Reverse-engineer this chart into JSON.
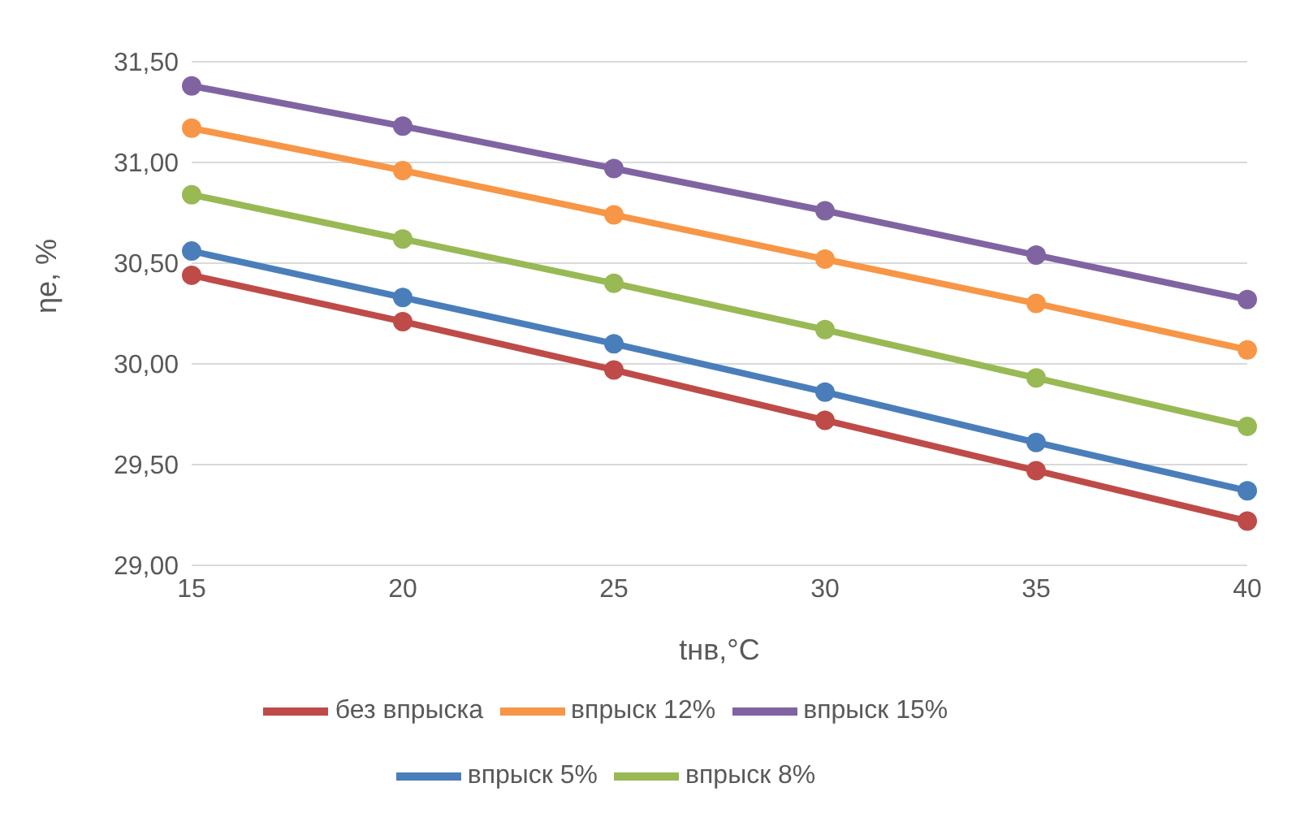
{
  "chart_data": {
    "type": "line",
    "xlabel": "tнв,°C",
    "ylabel": "ηе, %",
    "categories": [
      "15",
      "20",
      "25",
      "30",
      "35",
      "40"
    ],
    "ylim": [
      29,
      31.5
    ],
    "yticks": [
      {
        "value": 29,
        "label": "29,00"
      },
      {
        "value": 29.5,
        "label": "29,50"
      },
      {
        "value": 30,
        "label": "30,00"
      },
      {
        "value": 30.5,
        "label": "30,50"
      },
      {
        "value": 31,
        "label": "31,00"
      },
      {
        "value": 31.5,
        "label": "31,50"
      }
    ],
    "grid": "y",
    "legend": "bottom",
    "marker": "circle",
    "line_style": "solid",
    "series": [
      {
        "name": "впрыск 5%",
        "color": "#4a7ebb",
        "values": [
          30.56,
          30.33,
          30.1,
          29.86,
          29.61,
          29.37
        ]
      },
      {
        "name": "впрыск 8%",
        "color": "#98b954",
        "values": [
          30.84,
          30.62,
          30.4,
          30.17,
          29.93,
          29.69
        ]
      },
      {
        "name": "впрыск 12%",
        "color": "#f79646",
        "values": [
          31.17,
          30.96,
          30.74,
          30.52,
          30.3,
          30.07
        ]
      },
      {
        "name": "впрыск 15%",
        "color": "#8064a2",
        "values": [
          31.38,
          31.18,
          30.97,
          30.76,
          30.54,
          30.32
        ]
      },
      {
        "name": "без впрыска",
        "color": "#be4b48",
        "values": [
          30.44,
          30.21,
          29.97,
          29.72,
          29.47,
          29.22
        ]
      }
    ]
  }
}
